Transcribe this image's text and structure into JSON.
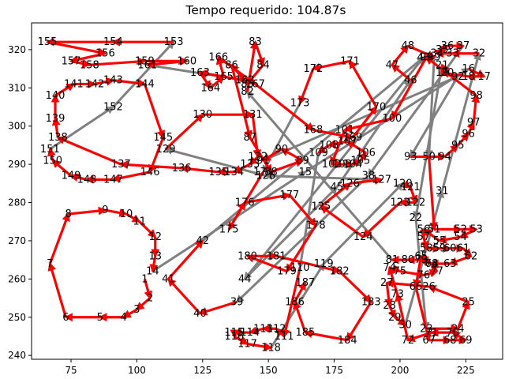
{
  "chart_data": {
    "type": "line",
    "title": "Tempo requerido: 104.87s",
    "xlabel": "",
    "ylabel": "",
    "xlim": [
      60,
      239
    ],
    "ylim": [
      239,
      327
    ],
    "x_ticks": [
      75,
      100,
      125,
      150,
      175,
      200,
      225
    ],
    "y_ticks": [
      240,
      250,
      260,
      270,
      280,
      290,
      300,
      310,
      320
    ],
    "grid": false,
    "series": [
      {
        "color": "#ff0000",
        "style": "arrows",
        "path_order": [
          1,
          2,
          3,
          4,
          5,
          6,
          7,
          8,
          9,
          10,
          11,
          12,
          13,
          14,
          1
        ],
        "note_points": [
          [
            103,
            261
          ],
          [
            105,
            257
          ],
          [
            103,
            251
          ],
          [
            95,
            250
          ],
          [
            85,
            250
          ],
          [
            71,
            250
          ],
          [
            66,
            277
          ],
          [
            75,
            277
          ],
          [
            89,
            277
          ],
          [
            98,
            276
          ],
          [
            103,
            274
          ],
          [
            104,
            270
          ],
          [
            104,
            263
          ]
        ]
      },
      {
        "color": "#808080",
        "style": "arrows"
      }
    ],
    "points": [
      {
        "id": "1",
        "x": 103,
        "y": 260
      },
      {
        "id": "2",
        "x": 105,
        "y": 255
      },
      {
        "id": "3",
        "x": 100,
        "y": 252
      },
      {
        "id": "4",
        "x": 95,
        "y": 250
      },
      {
        "id": "5",
        "x": 86,
        "y": 250
      },
      {
        "id": "6",
        "x": 73,
        "y": 250
      },
      {
        "id": "7",
        "x": 67,
        "y": 264
      },
      {
        "id": "8",
        "x": 74,
        "y": 277
      },
      {
        "id": "9",
        "x": 88,
        "y": 278
      },
      {
        "id": "10",
        "x": 96,
        "y": 277
      },
      {
        "id": "11",
        "x": 101,
        "y": 275
      },
      {
        "id": "12",
        "x": 107,
        "y": 271
      },
      {
        "id": "13",
        "x": 107,
        "y": 266
      },
      {
        "id": "14",
        "x": 106,
        "y": 262
      },
      {
        "id": "15",
        "x": 164,
        "y": 288
      },
      {
        "id": "16",
        "x": 226,
        "y": 315
      },
      {
        "id": "17",
        "x": 232,
        "y": 313
      },
      {
        "id": "18",
        "x": 226,
        "y": 313
      },
      {
        "id": "19",
        "x": 216,
        "y": 314
      },
      {
        "id": "20",
        "x": 218,
        "y": 314
      },
      {
        "id": "21",
        "x": 216,
        "y": 316
      },
      {
        "id": "22",
        "x": 206,
        "y": 276
      },
      {
        "id": "23",
        "x": 210,
        "y": 247
      },
      {
        "id": "24",
        "x": 222,
        "y": 247
      },
      {
        "id": "25",
        "x": 226,
        "y": 254
      },
      {
        "id": "26",
        "x": 211,
        "y": 258
      },
      {
        "id": "27",
        "x": 195,
        "y": 259
      },
      {
        "id": "28",
        "x": 196,
        "y": 253
      },
      {
        "id": "29",
        "x": 198,
        "y": 250
      },
      {
        "id": "30",
        "x": 202,
        "y": 248
      },
      {
        "id": "31",
        "x": 216,
        "y": 283
      },
      {
        "id": "32",
        "x": 230,
        "y": 319
      },
      {
        "id": "33",
        "x": 220,
        "y": 319
      },
      {
        "id": "34",
        "x": 214,
        "y": 319
      },
      {
        "id": "35",
        "x": 216,
        "y": 320
      },
      {
        "id": "36",
        "x": 218,
        "y": 321
      },
      {
        "id": "37",
        "x": 224,
        "y": 321
      },
      {
        "id": "38",
        "x": 188,
        "y": 287
      },
      {
        "id": "39",
        "x": 138,
        "y": 254
      },
      {
        "id": "40",
        "x": 124,
        "y": 251
      },
      {
        "id": "41",
        "x": 112,
        "y": 260
      },
      {
        "id": "42",
        "x": 125,
        "y": 270
      },
      {
        "id": "43",
        "x": 209,
        "y": 318
      },
      {
        "id": "44",
        "x": 141,
        "y": 260
      },
      {
        "id": "45",
        "x": 176,
        "y": 284
      },
      {
        "id": "46",
        "x": 204,
        "y": 312
      },
      {
        "id": "47",
        "x": 197,
        "y": 316
      },
      {
        "id": "48",
        "x": 203,
        "y": 321
      },
      {
        "id": "49",
        "x": 213,
        "y": 318
      },
      {
        "id": "50",
        "x": 211,
        "y": 292
      },
      {
        "id": "51",
        "x": 213,
        "y": 273
      },
      {
        "id": "52",
        "x": 223,
        "y": 273
      },
      {
        "id": "53",
        "x": 229,
        "y": 273
      },
      {
        "id": "54",
        "x": 223,
        "y": 271
      },
      {
        "id": "55",
        "x": 215,
        "y": 270
      },
      {
        "id": "56",
        "x": 209,
        "y": 273
      },
      {
        "id": "57",
        "x": 209,
        "y": 271
      },
      {
        "id": "58",
        "x": 210,
        "y": 268
      },
      {
        "id": "59",
        "x": 215,
        "y": 268
      },
      {
        "id": "60",
        "x": 219,
        "y": 268
      },
      {
        "id": "61",
        "x": 224,
        "y": 268
      },
      {
        "id": "62",
        "x": 227,
        "y": 266
      },
      {
        "id": "63",
        "x": 219,
        "y": 264
      },
      {
        "id": "64",
        "x": 212,
        "y": 264
      },
      {
        "id": "65",
        "x": 208,
        "y": 266
      },
      {
        "id": "66",
        "x": 206,
        "y": 258
      },
      {
        "id": "67",
        "x": 211,
        "y": 244
      },
      {
        "id": "68",
        "x": 219,
        "y": 244
      },
      {
        "id": "69",
        "x": 225,
        "y": 244
      },
      {
        "id": "70",
        "x": 220,
        "y": 246
      },
      {
        "id": "71",
        "x": 212,
        "y": 246
      },
      {
        "id": "72",
        "x": 203,
        "y": 244
      },
      {
        "id": "73",
        "x": 199,
        "y": 256
      },
      {
        "id": "74",
        "x": 196,
        "y": 263
      },
      {
        "id": "75",
        "x": 200,
        "y": 262
      },
      {
        "id": "76",
        "x": 209,
        "y": 261
      },
      {
        "id": "77",
        "x": 214,
        "y": 262
      },
      {
        "id": "78",
        "x": 212,
        "y": 264
      },
      {
        "id": "79",
        "x": 208,
        "y": 265
      },
      {
        "id": "80",
        "x": 203,
        "y": 265
      },
      {
        "id": "81",
        "x": 197,
        "y": 265
      },
      {
        "id": "82",
        "x": 142,
        "y": 309
      },
      {
        "id": "83",
        "x": 145,
        "y": 322
      },
      {
        "id": "84",
        "x": 148,
        "y": 316
      },
      {
        "id": "85",
        "x": 142,
        "y": 311
      },
      {
        "id": "86",
        "x": 136,
        "y": 316
      },
      {
        "id": "87",
        "x": 143,
        "y": 297
      },
      {
        "id": "88",
        "x": 151,
        "y": 288
      },
      {
        "id": "89",
        "x": 163,
        "y": 291
      },
      {
        "id": "90",
        "x": 155,
        "y": 294
      },
      {
        "id": "91",
        "x": 148,
        "y": 291
      },
      {
        "id": "92",
        "x": 222,
        "y": 313
      },
      {
        "id": "93",
        "x": 204,
        "y": 292
      },
      {
        "id": "94",
        "x": 217,
        "y": 292
      },
      {
        "id": "95",
        "x": 222,
        "y": 295
      },
      {
        "id": "96",
        "x": 226,
        "y": 298
      },
      {
        "id": "97",
        "x": 228,
        "y": 301
      },
      {
        "id": "98",
        "x": 229,
        "y": 308
      },
      {
        "id": "99",
        "x": 210,
        "y": 318
      },
      {
        "id": "100",
        "x": 197,
        "y": 302
      },
      {
        "id": "101",
        "x": 179,
        "y": 299
      },
      {
        "id": "102",
        "x": 174,
        "y": 290
      },
      {
        "id": "103",
        "x": 178,
        "y": 290
      },
      {
        "id": "104",
        "x": 182,
        "y": 290
      },
      {
        "id": "105",
        "x": 185,
        "y": 291
      },
      {
        "id": "106",
        "x": 187,
        "y": 293
      },
      {
        "id": "107",
        "x": 180,
        "y": 296
      },
      {
        "id": "108",
        "x": 173,
        "y": 295
      },
      {
        "id": "109",
        "x": 169,
        "y": 293
      },
      {
        "id": "110",
        "x": 162,
        "y": 263
      },
      {
        "id": "111",
        "x": 156,
        "y": 245
      },
      {
        "id": "112",
        "x": 153,
        "y": 247
      },
      {
        "id": "113",
        "x": 148,
        "y": 247
      },
      {
        "id": "114",
        "x": 143,
        "y": 246
      },
      {
        "id": "115",
        "x": 137,
        "y": 246
      },
      {
        "id": "116",
        "x": 137,
        "y": 245
      },
      {
        "id": "117",
        "x": 142,
        "y": 243
      },
      {
        "id": "118",
        "x": 151,
        "y": 242
      },
      {
        "id": "119",
        "x": 171,
        "y": 264
      },
      {
        "id": "120",
        "x": 201,
        "y": 285
      },
      {
        "id": "121",
        "x": 204,
        "y": 284
      },
      {
        "id": "122",
        "x": 206,
        "y": 280
      },
      {
        "id": "123",
        "x": 200,
        "y": 280
      },
      {
        "id": "124",
        "x": 186,
        "y": 271
      },
      {
        "id": "125",
        "x": 170,
        "y": 279
      },
      {
        "id": "126",
        "x": 181,
        "y": 285
      },
      {
        "id": "127",
        "x": 193,
        "y": 286
      },
      {
        "id": "128",
        "x": 149,
        "y": 287
      },
      {
        "id": "129",
        "x": 111,
        "y": 294
      },
      {
        "id": "130",
        "x": 125,
        "y": 303
      },
      {
        "id": "131",
        "x": 144,
        "y": 303
      },
      {
        "id": "132",
        "x": 146,
        "y": 292
      },
      {
        "id": "133",
        "x": 143,
        "y": 290
      },
      {
        "id": "134",
        "x": 137,
        "y": 288
      },
      {
        "id": "135",
        "x": 131,
        "y": 288
      },
      {
        "id": "136",
        "x": 117,
        "y": 289
      },
      {
        "id": "137",
        "x": 94,
        "y": 290
      },
      {
        "id": "138",
        "x": 70,
        "y": 297
      },
      {
        "id": "139",
        "x": 69,
        "y": 302
      },
      {
        "id": "140",
        "x": 69,
        "y": 308
      },
      {
        "id": "141",
        "x": 76,
        "y": 311
      },
      {
        "id": "142",
        "x": 84,
        "y": 311
      },
      {
        "id": "143",
        "x": 91,
        "y": 312
      },
      {
        "id": "144",
        "x": 103,
        "y": 311
      },
      {
        "id": "145",
        "x": 110,
        "y": 297
      },
      {
        "id": "146",
        "x": 105,
        "y": 288
      },
      {
        "id": "147",
        "x": 91,
        "y": 286
      },
      {
        "id": "148",
        "x": 81,
        "y": 286
      },
      {
        "id": "149",
        "x": 75,
        "y": 287
      },
      {
        "id": "150",
        "x": 68,
        "y": 291
      },
      {
        "id": "151",
        "x": 67,
        "y": 294
      },
      {
        "id": "152",
        "x": 91,
        "y": 305
      },
      {
        "id": "153",
        "x": 114,
        "y": 322
      },
      {
        "id": "154",
        "x": 91,
        "y": 322
      },
      {
        "id": "155",
        "x": 66,
        "y": 322
      },
      {
        "id": "156",
        "x": 88,
        "y": 319
      },
      {
        "id": "157",
        "x": 75,
        "y": 317
      },
      {
        "id": "158",
        "x": 82,
        "y": 316
      },
      {
        "id": "159",
        "x": 103,
        "y": 317
      },
      {
        "id": "160",
        "x": 119,
        "y": 317
      },
      {
        "id": "161",
        "x": 104,
        "y": 316
      },
      {
        "id": "162",
        "x": 141,
        "y": 312
      },
      {
        "id": "163",
        "x": 124,
        "y": 314
      },
      {
        "id": "164",
        "x": 128,
        "y": 310
      },
      {
        "id": "165",
        "x": 133,
        "y": 313
      },
      {
        "id": "166",
        "x": 131,
        "y": 318
      },
      {
        "id": "167",
        "x": 145,
        "y": 311
      },
      {
        "id": "168",
        "x": 167,
        "y": 299
      },
      {
        "id": "169",
        "x": 182,
        "y": 297
      },
      {
        "id": "170",
        "x": 191,
        "y": 305
      },
      {
        "id": "171",
        "x": 181,
        "y": 317
      },
      {
        "id": "172",
        "x": 167,
        "y": 315
      },
      {
        "id": "173",
        "x": 162,
        "y": 306
      },
      {
        "id": "174",
        "x": 148,
        "y": 288
      },
      {
        "id": "175",
        "x": 135,
        "y": 273
      },
      {
        "id": "176",
        "x": 141,
        "y": 280
      },
      {
        "id": "177",
        "x": 158,
        "y": 282
      },
      {
        "id": "178",
        "x": 168,
        "y": 274
      },
      {
        "id": "179",
        "x": 157,
        "y": 262
      },
      {
        "id": "180",
        "x": 142,
        "y": 266
      },
      {
        "id": "181",
        "x": 153,
        "y": 266
      },
      {
        "id": "182",
        "x": 177,
        "y": 262
      },
      {
        "id": "183",
        "x": 189,
        "y": 254
      },
      {
        "id": "184",
        "x": 180,
        "y": 244
      },
      {
        "id": "185",
        "x": 164,
        "y": 246
      },
      {
        "id": "186",
        "x": 160,
        "y": 254
      },
      {
        "id": "187",
        "x": 164,
        "y": 259
      }
    ]
  }
}
